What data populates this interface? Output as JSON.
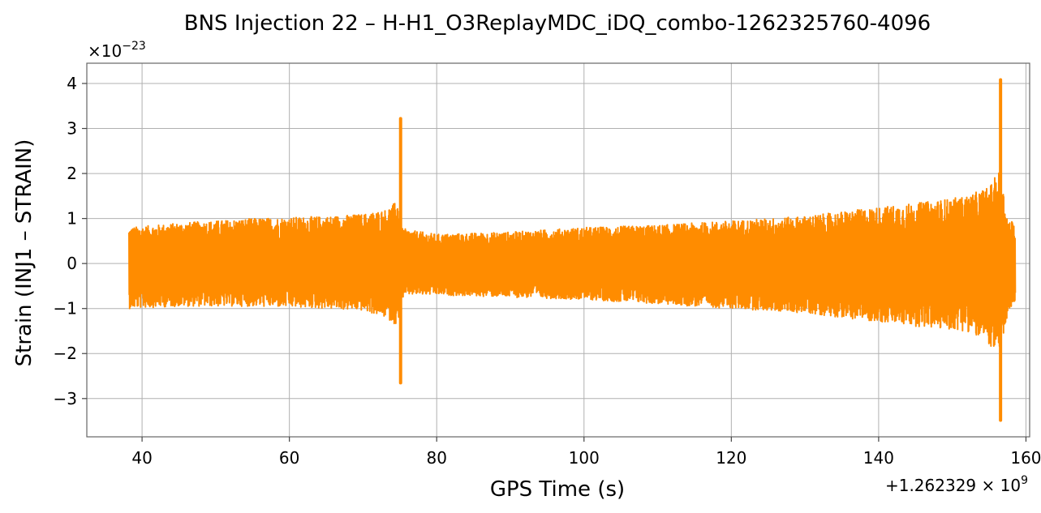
{
  "chart_data": {
    "type": "line",
    "title": "BNS Injection 22 – H-H1_O3ReplayMDC_iDQ_combo-1262325760-4096",
    "xlabel": "GPS Time (s)",
    "ylabel": "Strain (INJ1 – STRAIN)",
    "x_offset_label": "+1.262329 × 10",
    "x_offset_exp": "9",
    "y_scale_label": "×10",
    "y_scale_exp": "−23",
    "xlim": [
      32.5,
      160.5
    ],
    "ylim": [
      -3.85,
      4.45
    ],
    "xticks": [
      40,
      60,
      80,
      100,
      120,
      140,
      160
    ],
    "xtick_labels": [
      "40",
      "60",
      "80",
      "100",
      "120",
      "140",
      "160"
    ],
    "yticks": [
      -3,
      -2,
      -1,
      0,
      1,
      2,
      3,
      4
    ],
    "ytick_labels": [
      "−3",
      "−2",
      "−1",
      "0",
      "1",
      "2",
      "3",
      "4"
    ],
    "grid": true,
    "series": [
      {
        "color": "#ff8c00",
        "x_start": 38.2,
        "x_end": 158.5,
        "envelope": {
          "x": [
            38.2,
            45,
            55,
            65,
            70,
            73,
            74.8,
            75.2,
            76,
            80,
            90,
            100,
            110,
            120,
            130,
            140,
            148,
            152,
            155,
            156.5,
            157.5,
            158.5
          ],
          "upper": [
            0.8,
            0.9,
            1.0,
            1.05,
            1.1,
            1.2,
            1.4,
            0.8,
            0.75,
            0.65,
            0.7,
            0.8,
            0.85,
            0.95,
            1.05,
            1.25,
            1.4,
            1.5,
            1.7,
            2.1,
            1.0,
            0.9
          ],
          "lower": [
            -1.0,
            -0.95,
            -0.95,
            -1.0,
            -1.05,
            -1.2,
            -1.4,
            -0.8,
            -0.7,
            -0.7,
            -0.75,
            -0.8,
            -0.9,
            -1.0,
            -1.1,
            -1.3,
            -1.45,
            -1.5,
            -1.8,
            -2.1,
            -1.1,
            -0.85
          ]
        },
        "spikes": [
          {
            "x": 75.1,
            "max": 3.22,
            "min": -2.65
          },
          {
            "x": 156.55,
            "max": 4.08,
            "min": -3.48
          }
        ]
      }
    ]
  }
}
